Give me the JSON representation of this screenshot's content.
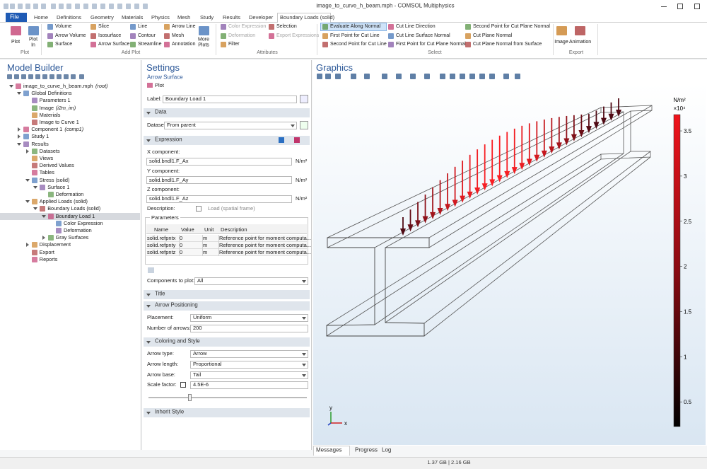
{
  "window": {
    "title": "image_to_curve_h_beam.mph - COMSOL Multiphysics"
  },
  "ribbon": {
    "file": "File",
    "tabs": [
      "Home",
      "Definitions",
      "Geometry",
      "Materials",
      "Physics",
      "Mesh",
      "Study",
      "Results",
      "Developer",
      "Boundary Loads (solid)"
    ],
    "groups": [
      {
        "label": "Plot",
        "items": [
          "Plot",
          "Plot In"
        ]
      },
      {
        "label": "Add Plot",
        "items": [
          "Volume",
          "Arrow Volume",
          "Surface",
          "Slice",
          "Isosurface",
          "Arrow Surface",
          "Line",
          "Contour",
          "Streamline",
          "Arrow Line",
          "Mesh",
          "Annotation",
          "More Plots"
        ]
      },
      {
        "label": "Attributes",
        "items": [
          "Color Expression",
          "Deformation",
          "Filter",
          "Selection",
          "Export Expressions"
        ]
      },
      {
        "label": "Select",
        "items": [
          "Evaluate Along Normal",
          "First Point for Cut Line",
          "Second Point for Cut Line",
          "Cut Line Direction",
          "Cut Line Surface Normal",
          "First Point for Cut Plane Normal",
          "Second Point for Cut Plane Normal",
          "Cut Plane Normal",
          "Cut Plane Normal from Surface"
        ]
      },
      {
        "label": "Export",
        "items": [
          "Image",
          "Animation"
        ]
      }
    ]
  },
  "model_builder": {
    "title": "Model Builder",
    "tree": [
      {
        "label": "image_to_curve_h_beam.mph",
        "note": "(root)"
      },
      {
        "label": "Global Definitions"
      },
      {
        "label": "Parameters 1"
      },
      {
        "label": "Image",
        "note": "(i2m_im)"
      },
      {
        "label": "Materials"
      },
      {
        "label": "Image to Curve 1"
      },
      {
        "label": "Component 1",
        "note": "(comp1)"
      },
      {
        "label": "Study 1"
      },
      {
        "label": "Results"
      },
      {
        "label": "Datasets"
      },
      {
        "label": "Views"
      },
      {
        "label": "Derived Values"
      },
      {
        "label": "Tables"
      },
      {
        "label": "Stress (solid)"
      },
      {
        "label": "Surface 1"
      },
      {
        "label": "Deformation"
      },
      {
        "label": "Applied Loads (solid)"
      },
      {
        "label": "Boundary Loads (solid)"
      },
      {
        "label": "Boundary Load 1"
      },
      {
        "label": "Color Expression"
      },
      {
        "label": "Deformation"
      },
      {
        "label": "Gray Surfaces"
      },
      {
        "label": "Displacement"
      },
      {
        "label": "Export"
      },
      {
        "label": "Reports"
      }
    ]
  },
  "settings": {
    "title": "Settings",
    "subtitle": "Arrow Surface",
    "plot_button": "Plot",
    "label_field": {
      "label": "Label:",
      "value": "Boundary Load 1"
    },
    "data_section": {
      "title": "Data",
      "dataset_label": "Dataset:",
      "dataset": "From parent"
    },
    "expression_section": {
      "title": "Expression",
      "components": [
        {
          "label": "X component:",
          "value": "solid.bndl1.F_Ax",
          "unit": "N/m²"
        },
        {
          "label": "Y component:",
          "value": "solid.bndl1.F_Ay",
          "unit": "N/m²"
        },
        {
          "label": "Z component:",
          "value": "solid.bndl1.F_Az",
          "unit": "N/m²"
        }
      ],
      "description_label": "Description:",
      "description_checkbox": "Load (spatial frame)",
      "parameters": {
        "title": "Parameters",
        "columns": [
          "Name",
          "Value",
          "Unit",
          "Description"
        ],
        "rows": [
          [
            "solid.refpntx",
            "0",
            "m",
            "Reference point for moment computa..."
          ],
          [
            "solid.refpnty",
            "0",
            "m",
            "Reference point for moment computa..."
          ],
          [
            "solid.refpntz",
            "0",
            "m",
            "Reference point for moment computa..."
          ]
        ]
      },
      "components_to_plot_label": "Components to plot:",
      "components_to_plot": "All"
    },
    "title_section": {
      "title": "Title"
    },
    "arrow_positioning": {
      "title": "Arrow Positioning",
      "placement_label": "Placement:",
      "placement": "Uniform",
      "number_label": "Number of arrows:",
      "number": 200
    },
    "coloring": {
      "title": "Coloring and Style",
      "arrow_type_label": "Arrow type:",
      "arrow_type": "Arrow",
      "arrow_length_label": "Arrow length:",
      "arrow_length": "Proportional",
      "arrow_base_label": "Arrow base:",
      "arrow_base": "Tail",
      "scale_label": "Scale factor:",
      "scale": "4.5E-6"
    },
    "inherit_section": {
      "title": "Inherit Style"
    }
  },
  "graphics": {
    "title": "Graphics",
    "colorbar": {
      "unit": "N/m²",
      "multiplier": "×10⁴",
      "ticks": [
        3.5,
        3,
        2.5,
        2,
        1.5,
        1,
        0.5
      ]
    },
    "axes": {
      "x": "x",
      "y": "y"
    }
  },
  "bottom_tabs": [
    "Messages",
    "Progress",
    "Log"
  ],
  "status": "1.37 GB | 2.16 GB"
}
